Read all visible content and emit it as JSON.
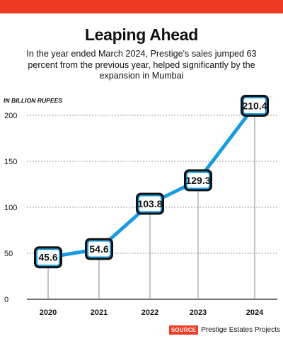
{
  "header": {
    "title": "Leaping Ahead",
    "subtitle": "In the year ended March 2024, Prestige's sales jumped 63 percent from the previous year, helped significantly by the expansion in Mumbai",
    "unit_label": "IN BILLION RUPEES"
  },
  "footer": {
    "source_tag": "SOURCE",
    "source_text": "Prestige Estates Projects"
  },
  "colors": {
    "accent_bar": "#ef3b24",
    "line": "#1a9be0",
    "marker_fill": "#111111",
    "label_box": "#ffffff",
    "grid": "#9a9a9a"
  },
  "chart_data": {
    "type": "line",
    "categories": [
      "2020",
      "2021",
      "2022",
      "2023",
      "2024"
    ],
    "series": [
      {
        "values": [
          45.6,
          54.6,
          103.8,
          129.3,
          210.4
        ]
      }
    ],
    "data_labels": [
      "45.6",
      "54.6",
      "103.8",
      "129.3",
      "210.4"
    ],
    "xlabel": "",
    "ylabel": "IN BILLION RUPEES",
    "ylim": [
      0,
      200
    ],
    "yticks": [
      0,
      50,
      100,
      150,
      200
    ],
    "grid": true
  }
}
